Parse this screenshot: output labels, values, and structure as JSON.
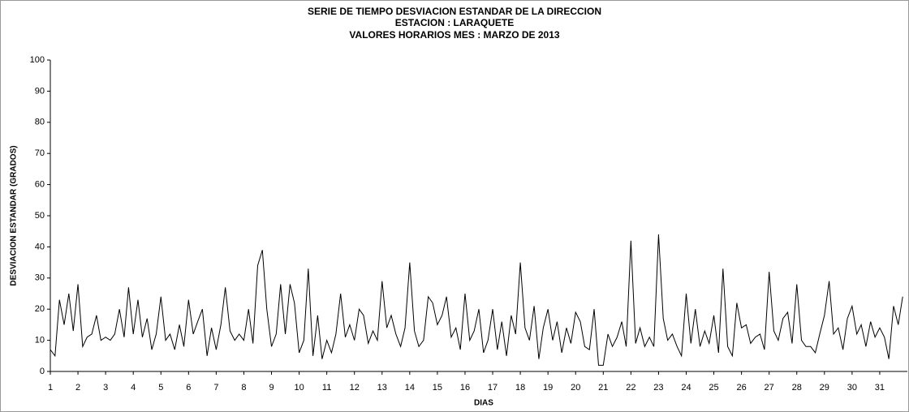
{
  "chart_data": {
    "type": "line",
    "title": [
      "SERIE DE TIEMPO DESVIACION ESTANDAR DE LA DIRECCION",
      "ESTACION : LARAQUETE",
      "VALORES HORARIOS MES : MARZO DE 2013"
    ],
    "x_label": "DIAS",
    "y_label": "DESVIACION ESTANDAR (GRADOS)",
    "color": "#000000",
    "xlim": [
      1,
      32
    ],
    "ylim": [
      0,
      100
    ],
    "xticks": [
      1,
      2,
      3,
      4,
      5,
      6,
      7,
      8,
      9,
      10,
      11,
      12,
      13,
      14,
      15,
      16,
      17,
      18,
      19,
      20,
      21,
      22,
      23,
      24,
      25,
      26,
      27,
      28,
      29,
      30,
      31
    ],
    "yticks": [
      0,
      10,
      20,
      30,
      40,
      50,
      60,
      70,
      80,
      90,
      100
    ],
    "x": [
      1,
      1.17,
      1.33,
      1.5,
      1.67,
      1.83,
      2,
      2.17,
      2.33,
      2.5,
      2.67,
      2.83,
      3,
      3.17,
      3.33,
      3.5,
      3.67,
      3.83,
      4,
      4.17,
      4.33,
      4.5,
      4.67,
      4.83,
      5,
      5.17,
      5.33,
      5.5,
      5.67,
      5.83,
      6,
      6.17,
      6.33,
      6.5,
      6.67,
      6.83,
      7,
      7.17,
      7.33,
      7.5,
      7.67,
      7.83,
      8,
      8.17,
      8.33,
      8.5,
      8.67,
      8.83,
      9,
      9.17,
      9.33,
      9.5,
      9.67,
      9.83,
      10,
      10.17,
      10.33,
      10.5,
      10.67,
      10.83,
      11,
      11.17,
      11.33,
      11.5,
      11.67,
      11.83,
      12,
      12.17,
      12.33,
      12.5,
      12.67,
      12.83,
      13,
      13.17,
      13.33,
      13.5,
      13.67,
      13.83,
      14,
      14.17,
      14.33,
      14.5,
      14.67,
      14.83,
      15,
      15.17,
      15.33,
      15.5,
      15.67,
      15.83,
      16,
      16.17,
      16.33,
      16.5,
      16.67,
      16.83,
      17,
      17.17,
      17.33,
      17.5,
      17.67,
      17.83,
      18,
      18.17,
      18.33,
      18.5,
      18.67,
      18.83,
      19,
      19.17,
      19.33,
      19.5,
      19.67,
      19.83,
      20,
      20.17,
      20.33,
      20.5,
      20.67,
      20.83,
      21,
      21.17,
      21.33,
      21.5,
      21.67,
      21.83,
      22,
      22.17,
      22.33,
      22.5,
      22.67,
      22.83,
      23,
      23.17,
      23.33,
      23.5,
      23.67,
      23.83,
      24,
      24.17,
      24.33,
      24.5,
      24.67,
      24.83,
      25,
      25.17,
      25.33,
      25.5,
      25.67,
      25.83,
      26,
      26.17,
      26.33,
      26.5,
      26.67,
      26.83,
      27,
      27.17,
      27.33,
      27.5,
      27.67,
      27.83,
      28,
      28.17,
      28.33,
      28.5,
      28.67,
      28.83,
      29,
      29.17,
      29.33,
      29.5,
      29.67,
      29.83,
      30,
      30.17,
      30.33,
      30.5,
      30.67,
      30.83,
      31,
      31.17,
      31.33,
      31.5,
      31.67,
      31.83
    ],
    "values": [
      7,
      5,
      23,
      15,
      25,
      13,
      28,
      8,
      11,
      12,
      18,
      10,
      11,
      10,
      12,
      20,
      11,
      27,
      12,
      23,
      11,
      17,
      7,
      12,
      24,
      10,
      12,
      7,
      15,
      8,
      23,
      12,
      16,
      20,
      5,
      14,
      7,
      15,
      27,
      13,
      10,
      12,
      10,
      20,
      9,
      34,
      39,
      20,
      8,
      12,
      28,
      12,
      28,
      22,
      6,
      10,
      33,
      5,
      18,
      4,
      10,
      6,
      12,
      25,
      11,
      15,
      10,
      20,
      18,
      9,
      13,
      10,
      29,
      14,
      18,
      12,
      8,
      14,
      35,
      13,
      8,
      10,
      24,
      22,
      15,
      18,
      24,
      11,
      14,
      7,
      25,
      10,
      13,
      20,
      6,
      10,
      20,
      7,
      16,
      5,
      18,
      12,
      35,
      14,
      10,
      21,
      4,
      14,
      20,
      10,
      16,
      6,
      14,
      9,
      19,
      16,
      8,
      7,
      20,
      2,
      2,
      12,
      8,
      11,
      16,
      8,
      42,
      9,
      14,
      8,
      11,
      8,
      44,
      17,
      10,
      12,
      8,
      5,
      25,
      9,
      20,
      8,
      13,
      9,
      18,
      6,
      33,
      8,
      5,
      22,
      14,
      15,
      9,
      11,
      12,
      7,
      32,
      13,
      10,
      17,
      19,
      9,
      28,
      10,
      8,
      8,
      6,
      12,
      18,
      29,
      12,
      14,
      7,
      17,
      21,
      12,
      15,
      8,
      16,
      11,
      14,
      11,
      4,
      21,
      15,
      24
    ]
  }
}
